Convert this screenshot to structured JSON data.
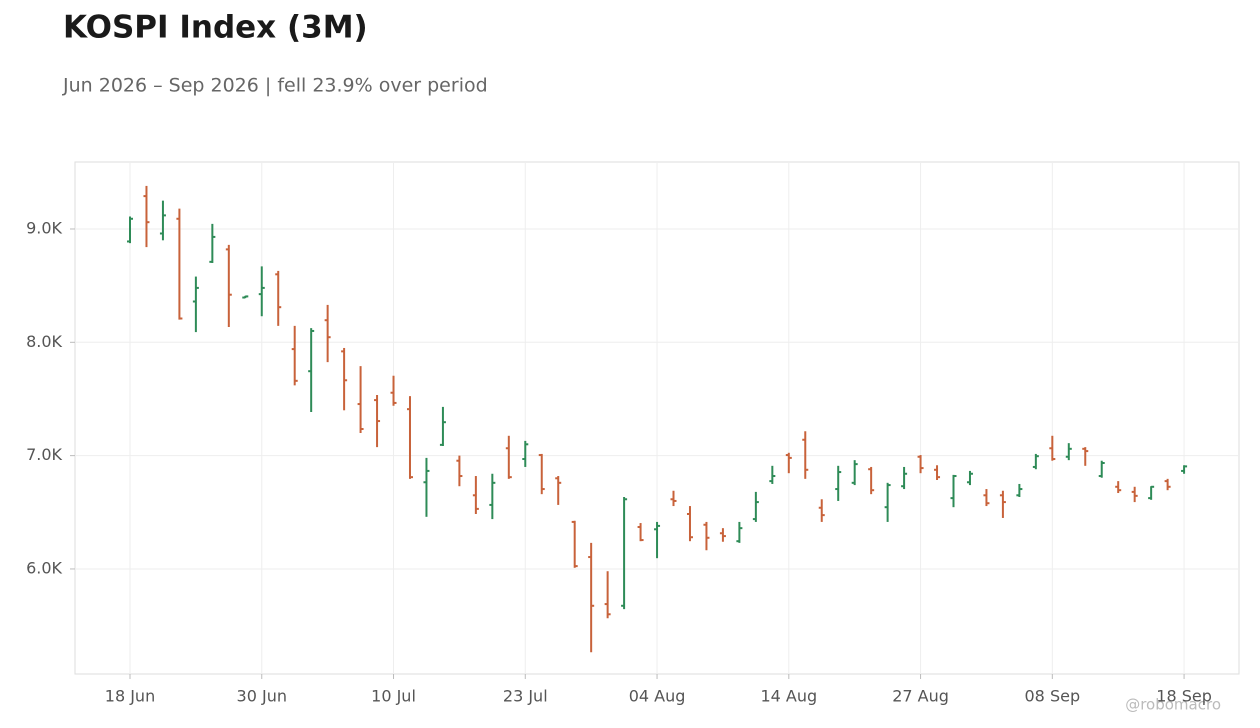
{
  "chart_data": {
    "type": "ohlc",
    "title": "KOSPI Index (3M)",
    "subtitle": "Jun 2026 – Sep 2026 | fell 23.9% over period",
    "watermark": "@robomacro",
    "categories": [
      "18 Jun",
      null,
      null,
      null,
      null,
      null,
      null,
      null,
      "30 Jun",
      null,
      null,
      null,
      null,
      null,
      null,
      null,
      "10 Jul",
      null,
      null,
      null,
      null,
      null,
      null,
      null,
      "23 Jul",
      null,
      null,
      null,
      null,
      null,
      null,
      null,
      "04 Aug",
      null,
      null,
      null,
      null,
      null,
      null,
      null,
      "14 Aug",
      null,
      null,
      null,
      null,
      null,
      null,
      null,
      "27 Aug",
      null,
      null,
      null,
      null,
      null,
      null,
      null,
      "08 Sep",
      null,
      null,
      null,
      null,
      null,
      null,
      null,
      "18 Sep"
    ],
    "open": [
      8890,
      9290,
      8960,
      9090,
      8360,
      8710,
      8820,
      8395,
      8425,
      8600,
      7940,
      7745,
      8195,
      7920,
      7455,
      7490,
      7555,
      7410,
      6765,
      7095,
      6955,
      6650,
      6565,
      7065,
      6970,
      7005,
      6800,
      6415,
      6105,
      5690,
      5675,
      6370,
      6350,
      6615,
      6485,
      6390,
      6315,
      6245,
      6440,
      6775,
      7005,
      7140,
      6540,
      6705,
      6760,
      6880,
      6545,
      6730,
      6990,
      6875,
      6625,
      6765,
      6650,
      6650,
      6650,
      6900,
      7065,
      6990,
      7060,
      6820,
      6725,
      6680,
      6625,
      6775,
      6865
    ],
    "high": [
      9110,
      9380,
      9250,
      9180,
      8580,
      9045,
      8860,
      8410,
      8670,
      8630,
      8145,
      8125,
      8330,
      7950,
      7790,
      7535,
      7705,
      7525,
      6980,
      7430,
      7000,
      6820,
      6840,
      7175,
      7130,
      7015,
      6820,
      6425,
      6230,
      5980,
      6635,
      6405,
      6415,
      6690,
      6555,
      6415,
      6360,
      6415,
      6680,
      6910,
      7025,
      7215,
      6615,
      6910,
      6960,
      6900,
      6760,
      6900,
      7005,
      6915,
      6830,
      6865,
      6705,
      6690,
      6750,
      7015,
      7175,
      7110,
      7075,
      6955,
      6775,
      6725,
      6730,
      6795,
      6915
    ],
    "low": [
      8875,
      8840,
      8900,
      8200,
      8090,
      8700,
      8135,
      8390,
      8230,
      8145,
      7620,
      7385,
      7825,
      7400,
      7200,
      7075,
      7440,
      6795,
      6460,
      7085,
      6730,
      6485,
      6440,
      6795,
      6900,
      6660,
      6565,
      6010,
      5265,
      5565,
      5645,
      6245,
      6095,
      6555,
      6245,
      6165,
      6240,
      6230,
      6415,
      6750,
      6845,
      6795,
      6415,
      6600,
      6740,
      6660,
      6415,
      6705,
      6845,
      6785,
      6545,
      6740,
      6555,
      6450,
      6635,
      6880,
      6955,
      6960,
      6910,
      6805,
      6670,
      6590,
      6610,
      6695,
      6840
    ],
    "close": [
      9090,
      9060,
      9120,
      8210,
      8480,
      8930,
      8420,
      8405,
      8480,
      8310,
      7660,
      8100,
      8045,
      7665,
      7235,
      7305,
      7465,
      6810,
      6865,
      7295,
      6820,
      6530,
      6760,
      6810,
      7100,
      6705,
      6760,
      6025,
      5675,
      5600,
      6615,
      6255,
      6380,
      6600,
      6280,
      6275,
      6290,
      6360,
      6590,
      6820,
      6980,
      6875,
      6475,
      6855,
      6925,
      6695,
      6740,
      6840,
      6890,
      6810,
      6820,
      6840,
      6580,
      6590,
      6705,
      6995,
      6970,
      7060,
      7040,
      6935,
      6695,
      6645,
      6725,
      6725,
      6905
    ],
    "up_color": "#2e8b57",
    "down_color": "#c8623a",
    "ylim": [
      5073,
      9591
    ],
    "yticks": [
      {
        "value": 6000,
        "label": "6.0K"
      },
      {
        "value": 7000,
        "label": "7.0K"
      },
      {
        "value": 8000,
        "label": "8.0K"
      },
      {
        "value": 9000,
        "label": "9.0K"
      }
    ],
    "grid": true
  }
}
